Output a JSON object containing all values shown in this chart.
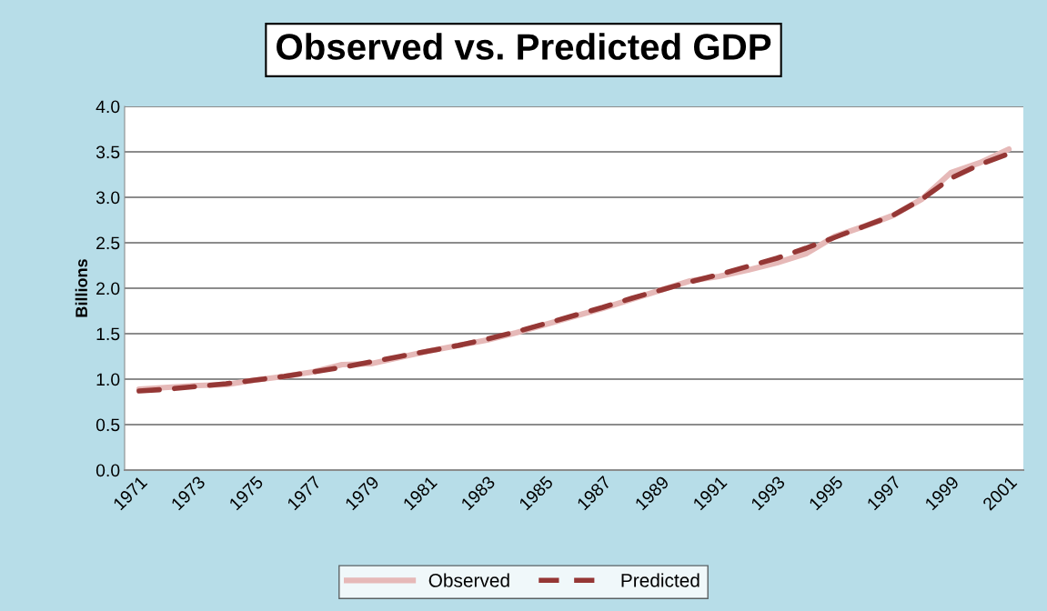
{
  "chart_data": {
    "type": "line",
    "title": "Observed vs. Predicted GDP",
    "ylabel": "Billions",
    "categories": [
      "1971",
      null,
      "1973",
      null,
      "1975",
      null,
      "1977",
      null,
      "1979",
      null,
      "1981",
      null,
      "1983",
      null,
      "1985",
      null,
      "1987",
      null,
      "1989",
      null,
      "1991",
      null,
      "1993",
      null,
      "1995",
      null,
      "1997",
      null,
      "1999",
      null,
      "2001"
    ],
    "series": [
      {
        "name": "Observed",
        "color": "#e6b9b8",
        "line_style": "solid",
        "values": [
          0.89,
          0.91,
          0.93,
          0.94,
          0.99,
          1.03,
          1.08,
          1.16,
          1.17,
          1.24,
          1.31,
          1.37,
          1.43,
          1.51,
          1.6,
          1.69,
          1.78,
          1.88,
          1.98,
          2.08,
          2.13,
          2.2,
          2.28,
          2.38,
          2.57,
          2.68,
          2.8,
          2.98,
          3.27,
          3.38,
          3.53
        ]
      },
      {
        "name": "Predicted",
        "color": "#953735",
        "line_style": "dashed",
        "values": [
          0.87,
          0.89,
          0.92,
          0.95,
          0.99,
          1.03,
          1.08,
          1.13,
          1.19,
          1.25,
          1.31,
          1.37,
          1.44,
          1.52,
          1.61,
          1.7,
          1.79,
          1.89,
          1.98,
          2.07,
          2.15,
          2.24,
          2.33,
          2.44,
          2.56,
          2.68,
          2.8,
          2.98,
          3.21,
          3.36,
          3.48
        ]
      }
    ],
    "ylim": [
      0,
      4
    ],
    "yticks": [
      {
        "value": 0,
        "label": "0.0"
      },
      {
        "value": 0.5,
        "label": "0.5"
      },
      {
        "value": 1,
        "label": "1.0"
      },
      {
        "value": 1.5,
        "label": "1.5"
      },
      {
        "value": 2,
        "label": "2.0"
      },
      {
        "value": 2.5,
        "label": "2.5"
      },
      {
        "value": 3,
        "label": "3.0"
      },
      {
        "value": 3.5,
        "label": "3.5"
      },
      {
        "value": 4,
        "label": "4.0"
      }
    ],
    "grid": "y",
    "legend": "bottom",
    "marker": "none"
  }
}
